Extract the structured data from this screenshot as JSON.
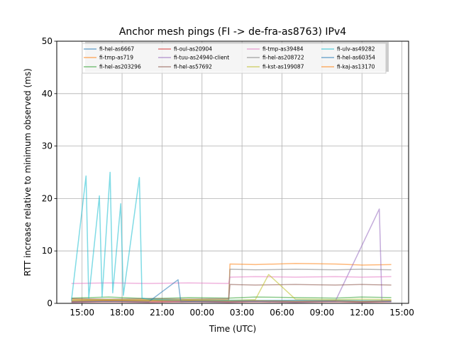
{
  "chart_data": {
    "type": "line",
    "title": "Anchor mesh pings (FI -> de-fra-as8763) IPv4",
    "xlabel": "Time (UTC)",
    "ylabel": "RTT increase relative to minimum observed (ms)",
    "xlim": [
      13.1,
      39.5
    ],
    "ylim": [
      0,
      50
    ],
    "grid": true,
    "legend_position": "top-center",
    "x_ticks": [
      {
        "value": 15,
        "label": "15:00"
      },
      {
        "value": 18,
        "label": "18:00"
      },
      {
        "value": 21,
        "label": "21:00"
      },
      {
        "value": 24,
        "label": "00:00"
      },
      {
        "value": 27,
        "label": "03:00"
      },
      {
        "value": 30,
        "label": "06:00"
      },
      {
        "value": 33,
        "label": "09:00"
      },
      {
        "value": 36,
        "label": "12:00"
      },
      {
        "value": 39,
        "label": "15:00"
      }
    ],
    "y_ticks": [
      0,
      10,
      20,
      30,
      40,
      50
    ],
    "series": [
      {
        "name": "fi-hel-as6667",
        "color": "#1f77b4",
        "x": [
          14.2,
          17,
          20,
          22.5,
          25.5,
          28,
          31,
          34,
          36.5,
          38.2
        ],
        "y": [
          0.4,
          0.5,
          0.6,
          0.3,
          0.4,
          0.5,
          0.6,
          0.5,
          0.4,
          0.5
        ]
      },
      {
        "name": "fi-tmp-as719",
        "color": "#ff7f0e",
        "x": [
          14.2,
          17,
          20,
          23,
          26,
          26.1,
          28,
          31,
          34,
          36,
          38.2
        ],
        "y": [
          0.8,
          0.6,
          0.7,
          0.6,
          0.7,
          7.5,
          7.4,
          7.6,
          7.5,
          7.3,
          7.4
        ]
      },
      {
        "name": "fi-hel-as203296",
        "color": "#2ca02c",
        "x": [
          14.2,
          17,
          20,
          23,
          26,
          28,
          31,
          34,
          36,
          38.2
        ],
        "y": [
          1.0,
          1.2,
          0.9,
          1.1,
          1.0,
          1.2,
          1.1,
          1.0,
          1.2,
          1.1
        ]
      },
      {
        "name": "fi-oul-as20904",
        "color": "#d62728",
        "x": [
          14.2,
          17,
          20,
          23,
          26,
          28,
          31,
          34,
          36,
          38.2
        ],
        "y": [
          0.2,
          0.3,
          0.2,
          0.3,
          0.2,
          0.3,
          0.2,
          0.3,
          0.2,
          0.3
        ]
      },
      {
        "name": "fi-tuu-as24940-client",
        "color": "#9467bd",
        "x": [
          14.2,
          17,
          20,
          23,
          26,
          28,
          31,
          34,
          37.3,
          37.5,
          38.2
        ],
        "y": [
          0.3,
          0.4,
          0.3,
          0.4,
          0.3,
          0.4,
          0.3,
          0.4,
          18,
          0.4,
          0.3
        ]
      },
      {
        "name": "fi-hel-as57692",
        "color": "#8c564b",
        "x": [
          14.2,
          17,
          20,
          23,
          26,
          26.1,
          28,
          31,
          34,
          36,
          38.2
        ],
        "y": [
          0.9,
          0.8,
          0.9,
          0.8,
          0.9,
          3.6,
          3.5,
          3.6,
          3.5,
          3.6,
          3.5
        ]
      },
      {
        "name": "fi-tmp-as39484",
        "color": "#e377c2",
        "x": [
          14.2,
          17,
          20,
          23,
          26,
          26.1,
          28,
          31,
          34,
          36,
          38.2
        ],
        "y": [
          3.8,
          3.9,
          3.8,
          3.9,
          3.8,
          5.0,
          5.1,
          5.0,
          5.1,
          5.0,
          5.1
        ]
      },
      {
        "name": "fi-hel-as208722",
        "color": "#7f7f7f",
        "x": [
          14.2,
          17,
          20,
          23,
          26,
          26.1,
          28,
          31,
          34,
          36,
          38.2
        ],
        "y": [
          0.5,
          0.6,
          0.5,
          0.6,
          0.5,
          6.5,
          6.4,
          6.5,
          6.4,
          6.5,
          6.4
        ]
      },
      {
        "name": "fi-kst-as199087",
        "color": "#bcbd22",
        "x": [
          14.2,
          17,
          20,
          23,
          26,
          28,
          29,
          31,
          34,
          36,
          38.2
        ],
        "y": [
          0.6,
          0.7,
          0.6,
          0.7,
          0.6,
          0.7,
          5.5,
          0.8,
          0.7,
          0.8,
          0.7
        ]
      },
      {
        "name": "fi-ulv-as49282",
        "color": "#17becf",
        "x": [
          14.2,
          15.3,
          15.5,
          16.3,
          16.5,
          17.1,
          17.3,
          17.9,
          18.1,
          19.3,
          19.5,
          20,
          23,
          26,
          31,
          34,
          38.2
        ],
        "y": [
          0.5,
          24.3,
          1.0,
          20.5,
          1.2,
          25.0,
          2.0,
          19.0,
          1.5,
          24.0,
          1.0,
          0.8,
          0.5,
          0.6,
          0.5,
          0.6,
          0.5
        ]
      },
      {
        "name": "fi-hel-as60354",
        "color": "#1f77b4",
        "x": [
          14.2,
          17,
          20,
          22.2,
          22.4,
          25,
          28,
          31,
          34,
          36,
          38.2
        ],
        "y": [
          0.3,
          0.4,
          0.3,
          4.5,
          0.4,
          0.3,
          0.4,
          0.3,
          0.4,
          0.3,
          0.4
        ]
      },
      {
        "name": "fi-kaj-as13170",
        "color": "#ff7f0e",
        "x": [
          14.2,
          17,
          20,
          23,
          26,
          28,
          31,
          34,
          36,
          38.2
        ],
        "y": [
          0.4,
          0.5,
          0.4,
          0.5,
          0.4,
          0.5,
          0.4,
          0.5,
          0.4,
          0.5
        ]
      }
    ]
  }
}
